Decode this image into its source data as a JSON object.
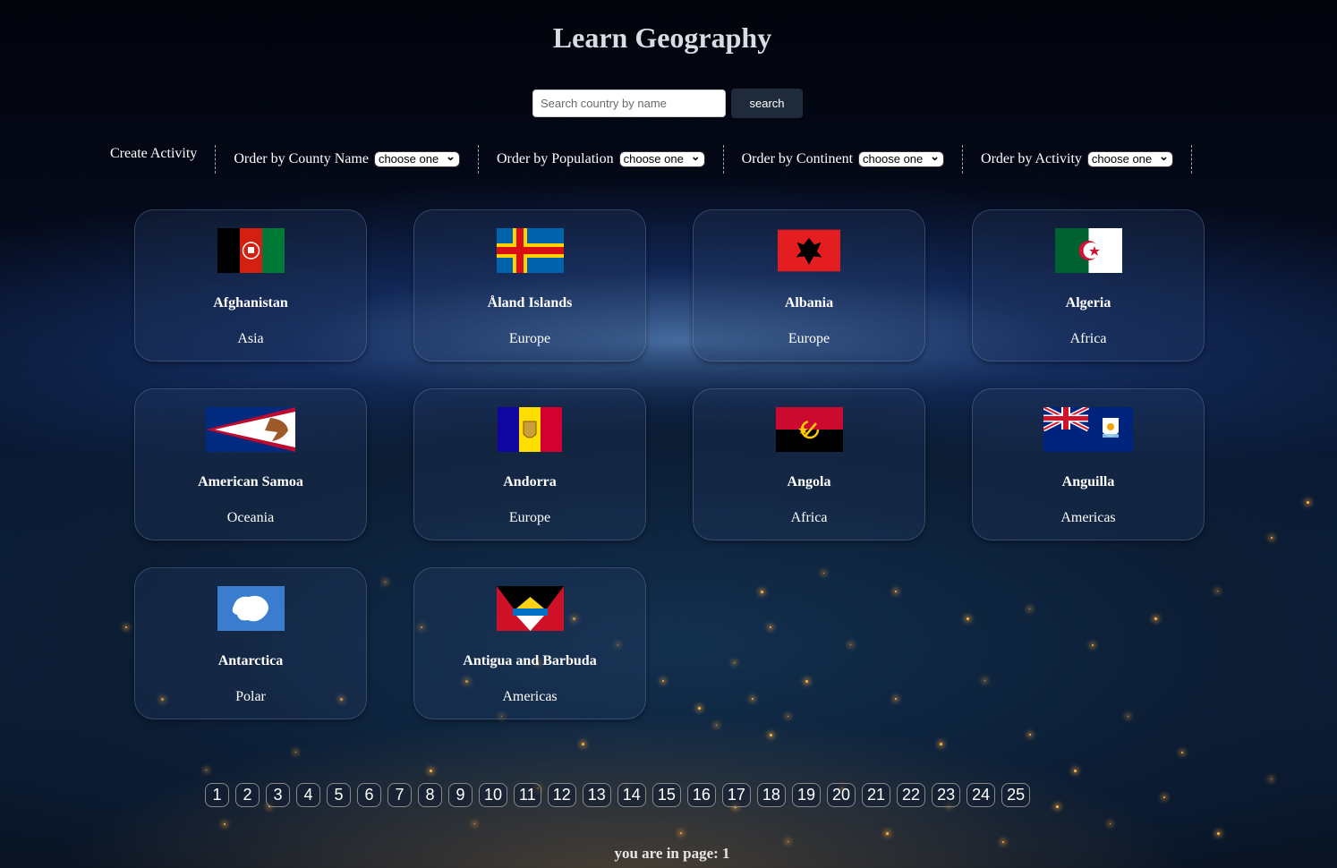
{
  "title": "Learn Geography",
  "search": {
    "placeholder": "Search country by name",
    "button": "search"
  },
  "toolbar": {
    "create_activity": "Create Activity",
    "filters": [
      {
        "label": "Order by County Name",
        "selected": "choose one"
      },
      {
        "label": "Order by Population",
        "selected": "choose one"
      },
      {
        "label": "Order by Continent",
        "selected": "choose one"
      },
      {
        "label": "Order by Activity",
        "selected": "choose one"
      }
    ]
  },
  "countries": [
    {
      "name": "Afghanistan",
      "continent": "Asia",
      "flag": "afghanistan-flag-icon"
    },
    {
      "name": "Åland Islands",
      "continent": "Europe",
      "flag": "aland-flag-icon"
    },
    {
      "name": "Albania",
      "continent": "Europe",
      "flag": "albania-flag-icon"
    },
    {
      "name": "Algeria",
      "continent": "Africa",
      "flag": "algeria-flag-icon"
    },
    {
      "name": "American Samoa",
      "continent": "Oceania",
      "flag": "american-samoa-flag-icon"
    },
    {
      "name": "Andorra",
      "continent": "Europe",
      "flag": "andorra-flag-icon"
    },
    {
      "name": "Angola",
      "continent": "Africa",
      "flag": "angola-flag-icon"
    },
    {
      "name": "Anguilla",
      "continent": "Americas",
      "flag": "anguilla-flag-icon"
    },
    {
      "name": "Antarctica",
      "continent": "Polar",
      "flag": "antarctica-flag-icon"
    },
    {
      "name": "Antigua and Barbuda",
      "continent": "Americas",
      "flag": "antigua-flag-icon"
    }
  ],
  "pagination": {
    "pages": [
      "1",
      "2",
      "3",
      "4",
      "5",
      "6",
      "7",
      "8",
      "9",
      "10",
      "11",
      "12",
      "13",
      "14",
      "15",
      "16",
      "17",
      "18",
      "19",
      "20",
      "21",
      "22",
      "23",
      "24",
      "25"
    ],
    "current_text": "you are in page: 1"
  }
}
